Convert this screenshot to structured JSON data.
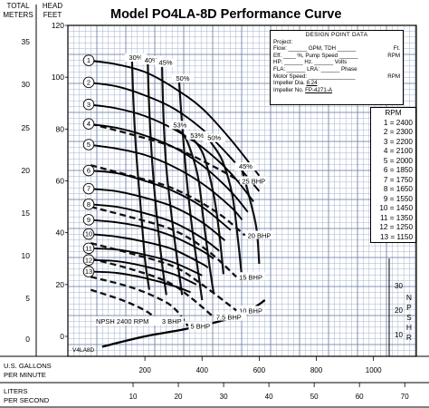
{
  "title": "Model PO4LA-8D Performance Curve",
  "axis": {
    "meters_label": [
      "TOTAL",
      "METERS"
    ],
    "feet_label": [
      "HEAD",
      "FEET"
    ],
    "gpm_label": [
      "U.S. GALLONS",
      "PER MINUTE"
    ],
    "lps_label": [
      "LITERS",
      "PER SECOND"
    ],
    "npshr_label": [
      "N",
      "P",
      "S",
      "H",
      "R"
    ],
    "meters_ticks": [
      "35",
      "30",
      "25",
      "20",
      "15",
      "10",
      "5",
      "0"
    ],
    "feet_ticks": [
      "120",
      "100",
      "80",
      "60",
      "40",
      "20",
      "0"
    ],
    "gpm_ticks": [
      "200",
      "400",
      "600",
      "800",
      "1000"
    ],
    "lps_ticks": [
      "10",
      "20",
      "30",
      "40",
      "50",
      "60",
      "70"
    ],
    "npshr_ticks": [
      "30",
      "20",
      "10"
    ]
  },
  "design_point": {
    "heading": "DESIGN POINT DATA",
    "lines": [
      [
        "Project:",
        ""
      ],
      [
        "Flow: ______ GPM, TDH ______",
        "Ft."
      ],
      [
        "Eff. ____ %, Pump Speed ______",
        "RPM"
      ],
      [
        "HP: ______ Hz. ______ Volts",
        ""
      ],
      [
        "FLA: ______ LRA: ______ Phase",
        ""
      ],
      [
        "Motor Speed: _______________",
        "RPM"
      ]
    ],
    "impeller_dia_label": "Impeller Dia.",
    "impeller_dia": "8.24",
    "impeller_no_label": "Impeller No.",
    "impeller_no": "FP-4271-A"
  },
  "rpm_legend": {
    "heading": "RPM",
    "items": [
      "1 = 2400",
      "2 = 2300",
      "3 = 2200",
      "4 = 2100",
      "5 = 2000",
      "6 = 1850",
      "7 = 1750",
      "8 = 1650",
      "9 = 1550",
      "10 = 1450",
      "11 = 1350",
      "12 = 1250",
      "13 = 1150"
    ]
  },
  "curve_code": "V4LA8D",
  "chart_data": {
    "type": "line",
    "title": "Model PO4LA-8D Performance Curve",
    "xlabel": "U.S. GALLONS PER MINUTE",
    "ylabel": "HEAD FEET",
    "x2label": "LITERS PER SECOND",
    "y2label": "TOTAL METERS",
    "y3label": "NPSHR",
    "xlim": [
      0,
      1150
    ],
    "ylim": [
      0,
      120
    ],
    "grid": true,
    "series": [
      {
        "name": "1 = 2400",
        "values": [
          [
            0,
            106.5
          ],
          [
            100,
            105
          ],
          [
            200,
            102
          ],
          [
            300,
            96
          ],
          [
            400,
            88
          ],
          [
            500,
            76
          ],
          [
            600,
            62
          ]
        ]
      },
      {
        "name": "2 = 2300",
        "values": [
          [
            0,
            98
          ],
          [
            100,
            96.5
          ],
          [
            200,
            93
          ],
          [
            300,
            88
          ],
          [
            400,
            80
          ],
          [
            500,
            69
          ],
          [
            600,
            56
          ]
        ]
      },
      {
        "name": "3 = 2200",
        "values": [
          [
            0,
            89.5
          ],
          [
            100,
            88
          ],
          [
            200,
            85
          ],
          [
            300,
            80
          ],
          [
            400,
            73
          ],
          [
            500,
            63
          ],
          [
            580,
            52
          ]
        ]
      },
      {
        "name": "4 = 2100",
        "values": [
          [
            0,
            82
          ],
          [
            100,
            80.5
          ],
          [
            200,
            77.5
          ],
          [
            300,
            73
          ],
          [
            400,
            66
          ],
          [
            500,
            56
          ],
          [
            560,
            48
          ]
        ]
      },
      {
        "name": "5 = 2000",
        "values": [
          [
            0,
            74
          ],
          [
            100,
            72.5
          ],
          [
            200,
            70
          ],
          [
            300,
            65.5
          ],
          [
            400,
            59
          ],
          [
            500,
            50
          ],
          [
            540,
            45
          ]
        ]
      },
      {
        "name": "6 = 1850",
        "values": [
          [
            0,
            64
          ],
          [
            100,
            63
          ],
          [
            200,
            60
          ],
          [
            300,
            56
          ],
          [
            400,
            50
          ],
          [
            500,
            41
          ]
        ]
      },
      {
        "name": "7 = 1750",
        "values": [
          [
            0,
            57
          ],
          [
            100,
            56
          ],
          [
            200,
            53.5
          ],
          [
            300,
            50
          ],
          [
            400,
            44
          ],
          [
            480,
            37
          ]
        ]
      },
      {
        "name": "8 = 1650",
        "values": [
          [
            0,
            51
          ],
          [
            100,
            50
          ],
          [
            200,
            47.5
          ],
          [
            300,
            44
          ],
          [
            400,
            38
          ],
          [
            460,
            33
          ]
        ]
      },
      {
        "name": "9 = 1550",
        "values": [
          [
            0,
            45
          ],
          [
            100,
            44
          ],
          [
            200,
            42
          ],
          [
            300,
            38.5
          ],
          [
            400,
            33
          ],
          [
            440,
            30
          ]
        ]
      },
      {
        "name": "10 = 1450",
        "values": [
          [
            0,
            39.5
          ],
          [
            100,
            38.5
          ],
          [
            200,
            36.5
          ],
          [
            300,
            33.5
          ],
          [
            400,
            28
          ],
          [
            420,
            26.5
          ]
        ]
      },
      {
        "name": "11 = 1350",
        "values": [
          [
            0,
            34
          ],
          [
            100,
            33.5
          ],
          [
            200,
            31.5
          ],
          [
            300,
            28.5
          ],
          [
            400,
            23.5
          ]
        ]
      },
      {
        "name": "12 = 1250",
        "values": [
          [
            0,
            29.5
          ],
          [
            100,
            29
          ],
          [
            200,
            27
          ],
          [
            300,
            24
          ],
          [
            380,
            20
          ]
        ]
      },
      {
        "name": "13 = 1150",
        "values": [
          [
            0,
            25
          ],
          [
            100,
            24.5
          ],
          [
            200,
            22.5
          ],
          [
            300,
            19.5
          ],
          [
            360,
            17
          ]
        ]
      }
    ],
    "efficiency": [
      {
        "label": "30%",
        "values": [
          [
            155,
            106
          ],
          [
            160,
            90
          ],
          [
            170,
            70
          ],
          [
            185,
            50
          ],
          [
            200,
            30
          ],
          [
            215,
            18
          ]
        ]
      },
      {
        "label": "40%",
        "values": [
          [
            210,
            105
          ],
          [
            215,
            88
          ],
          [
            225,
            68
          ],
          [
            240,
            48
          ],
          [
            260,
            28
          ],
          [
            275,
            16
          ]
        ]
      },
      {
        "name": "45%",
        "label": "45%",
        "values": [
          [
            260,
            104
          ],
          [
            265,
            85
          ],
          [
            275,
            65
          ],
          [
            295,
            45
          ],
          [
            315,
            28
          ],
          [
            330,
            16
          ]
        ]
      },
      {
        "label": "50%",
        "values": [
          [
            320,
            98
          ],
          [
            330,
            82
          ],
          [
            345,
            62
          ],
          [
            365,
            42
          ],
          [
            385,
            26
          ],
          [
            400,
            14
          ]
        ]
      },
      {
        "label": "53%",
        "values": [
          [
            310,
            80
          ],
          [
            345,
            76
          ],
          [
            385,
            62
          ],
          [
            405,
            45
          ],
          [
            425,
            28
          ],
          [
            440,
            17
          ]
        ]
      },
      {
        "label": "53%",
        "values": [
          [
            370,
            76
          ],
          [
            405,
            70
          ],
          [
            440,
            55
          ],
          [
            460,
            40
          ],
          [
            475,
            24
          ]
        ]
      },
      {
        "label": "50%",
        "values": [
          [
            430,
            75
          ],
          [
            470,
            68
          ],
          [
            505,
            55
          ],
          [
            525,
            38
          ],
          [
            540,
            22
          ]
        ]
      },
      {
        "label": "45%",
        "values": [
          [
            540,
            64
          ],
          [
            560,
            56
          ],
          [
            590,
            42
          ],
          [
            600,
            28
          ]
        ]
      }
    ],
    "bhp": [
      {
        "label": "25 BHP",
        "values": [
          [
            10,
            82
          ],
          [
            150,
            78
          ],
          [
            300,
            73
          ],
          [
            450,
            65
          ],
          [
            530,
            60
          ]
        ]
      },
      {
        "label": "20 BHP",
        "values": [
          [
            10,
            66
          ],
          [
            150,
            62
          ],
          [
            300,
            57
          ],
          [
            450,
            48
          ],
          [
            550,
            39
          ]
        ]
      },
      {
        "label": "15 BHP",
        "values": [
          [
            10,
            50
          ],
          [
            150,
            46
          ],
          [
            300,
            41
          ],
          [
            420,
            33
          ],
          [
            520,
            23
          ]
        ]
      },
      {
        "label": "10 BHP",
        "values": [
          [
            10,
            36
          ],
          [
            150,
            32
          ],
          [
            300,
            27
          ],
          [
            400,
            20
          ],
          [
            520,
            10
          ]
        ]
      },
      {
        "label": "7.5 BHP",
        "values": [
          [
            10,
            30
          ],
          [
            150,
            26
          ],
          [
            280,
            21
          ],
          [
            360,
            15
          ],
          [
            440,
            7.5
          ]
        ]
      },
      {
        "label": "5 BHP",
        "values": [
          [
            10,
            23
          ],
          [
            150,
            19
          ],
          [
            260,
            14
          ],
          [
            310,
            10
          ],
          [
            350,
            4
          ]
        ]
      },
      {
        "label": "3 BHP",
        "values": [
          [
            10,
            18
          ],
          [
            120,
            14
          ],
          [
            200,
            10
          ],
          [
            250,
            6
          ]
        ]
      }
    ],
    "npshr": {
      "label": "NPSH 2400 RPM",
      "values": [
        [
          50,
          -4
        ],
        [
          200,
          0
        ],
        [
          350,
          3
        ],
        [
          500,
          7
        ],
        [
          580,
          11
        ],
        [
          620,
          14
        ]
      ]
    }
  }
}
